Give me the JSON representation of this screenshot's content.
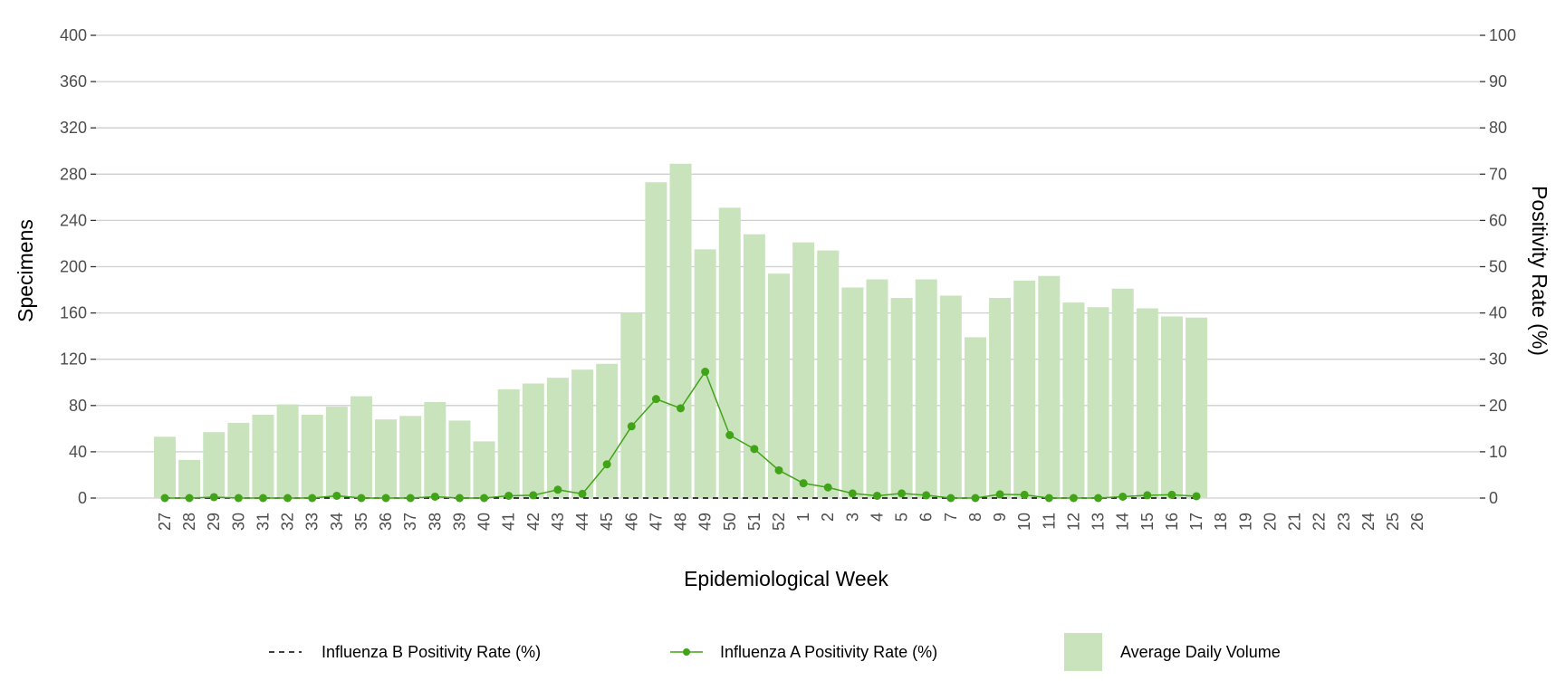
{
  "chart_data": {
    "type": "bar+line",
    "xlabel": "Epidemiological Week",
    "ylabel": "Specimens",
    "y2label": "Positivity Rate (%)",
    "ylim": [
      0,
      400
    ],
    "y2lim": [
      0,
      100
    ],
    "yticks": [
      0,
      40,
      80,
      120,
      160,
      200,
      240,
      280,
      320,
      360,
      400
    ],
    "y2ticks": [
      0,
      10,
      20,
      30,
      40,
      50,
      60,
      70,
      80,
      90,
      100
    ],
    "grid": "horizontal",
    "legend_position": "bottom",
    "categories": [
      "27",
      "28",
      "29",
      "30",
      "31",
      "32",
      "33",
      "34",
      "35",
      "36",
      "37",
      "38",
      "39",
      "40",
      "41",
      "42",
      "43",
      "44",
      "45",
      "46",
      "47",
      "48",
      "49",
      "50",
      "51",
      "52",
      "1",
      "2",
      "3",
      "4",
      "5",
      "6",
      "7",
      "8",
      "9",
      "10",
      "11",
      "12",
      "13",
      "14",
      "15",
      "16",
      "17",
      "18",
      "19",
      "20",
      "21",
      "22",
      "23",
      "24",
      "25",
      "26"
    ],
    "series": [
      {
        "name": "Average Daily Volume",
        "type": "bar",
        "axis": "left",
        "color": "#c9e4bc",
        "values": [
          53,
          33,
          57,
          65,
          72,
          81,
          72,
          79,
          88,
          68,
          71,
          83,
          67,
          49,
          94,
          99,
          104,
          111,
          116,
          160,
          273,
          289,
          215,
          251,
          228,
          194,
          221,
          214,
          182,
          189,
          173,
          189,
          175,
          139,
          173,
          188,
          192,
          169,
          165,
          181,
          164,
          157,
          156,
          null,
          null,
          null,
          null,
          null,
          null,
          null,
          null,
          null
        ]
      },
      {
        "name": "Influenza A Positivity Rate (%)",
        "type": "line",
        "axis": "right",
        "color": "#41a317",
        "marker": "circle",
        "values": [
          0,
          0,
          0.2,
          0,
          0,
          0,
          0,
          0.5,
          0,
          0,
          0,
          0.3,
          0,
          0,
          0.5,
          0.6,
          1.8,
          0.9,
          7.3,
          15.5,
          21.4,
          19.4,
          27.3,
          13.6,
          10.6,
          6,
          3.2,
          2.3,
          1,
          0.5,
          1,
          0.6,
          0,
          0,
          0.8,
          0.7,
          0,
          0,
          0,
          0.3,
          0.6,
          0.7,
          0.4,
          null,
          null,
          null,
          null,
          null,
          null,
          null,
          null,
          null
        ]
      },
      {
        "name": "Influenza B Positivity Rate (%)",
        "type": "line",
        "axis": "right",
        "color": "#000000",
        "dash": "dashed",
        "values": [
          0,
          0,
          0,
          0,
          0,
          0,
          0,
          0,
          0,
          0,
          0,
          0,
          0,
          0,
          0,
          0,
          0,
          0,
          0,
          0,
          0,
          0,
          0,
          0,
          0,
          0,
          0,
          0,
          0,
          0,
          0,
          0,
          0,
          0,
          0,
          0,
          0,
          0,
          0,
          0,
          0,
          0,
          0,
          null,
          null,
          null,
          null,
          null,
          null,
          null,
          null,
          null
        ]
      }
    ],
    "legend": [
      "Influenza B Positivity Rate (%)",
      "Influenza A Positivity Rate (%)",
      "Average Daily Volume"
    ]
  }
}
